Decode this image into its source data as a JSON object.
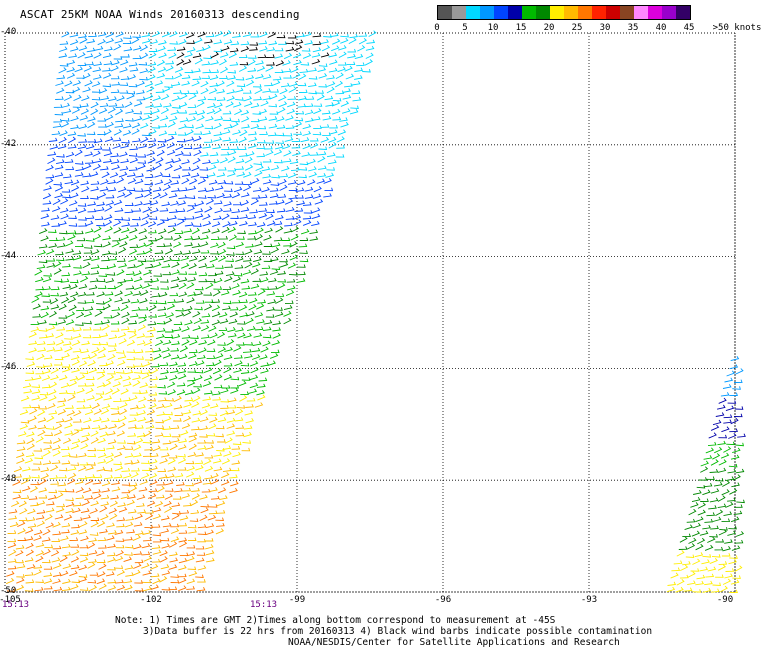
{
  "header": {
    "title": "ASCAT 25KM NOAA Winds 20160313 descending"
  },
  "legend": {
    "colors": [
      "#555555",
      "#999999",
      "#00d8ff",
      "#0098ff",
      "#0044ff",
      "#0000aa",
      "#00bb00",
      "#008800",
      "#ffee00",
      "#ffbb00",
      "#ff7700",
      "#ff2200",
      "#cc0000",
      "#884422",
      "#ff88ff",
      "#dd00dd",
      "#9900cc",
      "#330066"
    ],
    "labels": [
      {
        "text": "0",
        "pos": 0
      },
      {
        "text": "5",
        "pos": 1
      },
      {
        "text": "10",
        "pos": 2
      },
      {
        "text": "15",
        "pos": 3
      },
      {
        "text": "20",
        "pos": 4
      },
      {
        "text": "25",
        "pos": 5
      },
      {
        "text": "30",
        "pos": 6
      },
      {
        "text": "35",
        "pos": 7
      },
      {
        "text": "40",
        "pos": 8
      },
      {
        "text": "45",
        "pos": 9
      },
      {
        "text": ">50 knots",
        "pos": 10
      }
    ]
  },
  "axes": {
    "lat_labels": [
      "-40",
      "-42",
      "-44",
      "-46",
      "-48",
      "-50"
    ],
    "lon_labels": [
      "-105",
      "-102",
      "-99",
      "-96",
      "-93",
      "-90"
    ],
    "lat_range": [
      -50,
      -40
    ],
    "lon_range": [
      -105,
      -90
    ]
  },
  "time_labels": [
    "15:13",
    "15:13"
  ],
  "notes": [
    "Note: 1) Times are GMT 2)Times along bottom correspond to measurement at -45S",
    "3)Data buffer is 22 hrs from 20160313 4) Black wind barbs indicate possible contamination",
    "NOAA/NESDIS/Center for Satellite Applications and Research"
  ]
}
